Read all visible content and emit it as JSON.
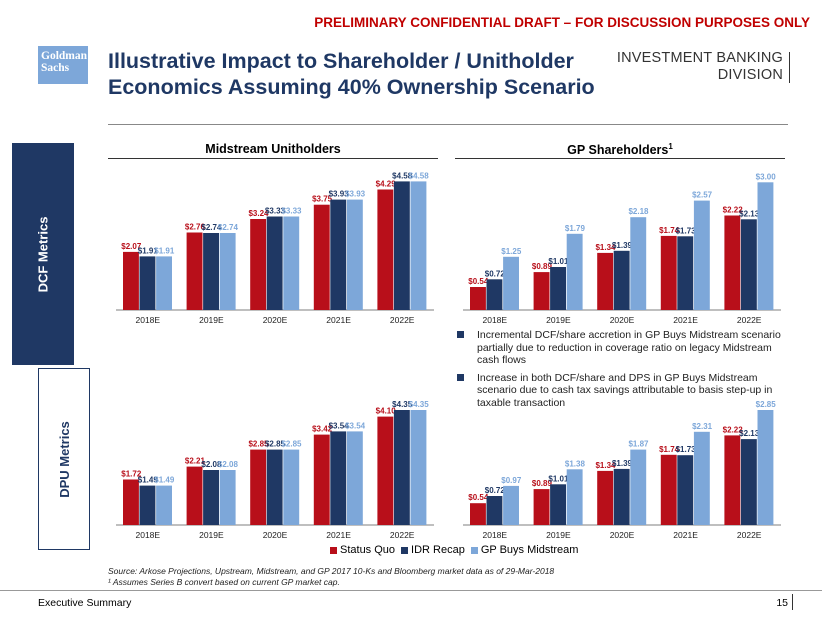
{
  "draft_banner": "PRELIMINARY CONFIDENTIAL DRAFT – FOR DISCUSSION PURPOSES ONLY",
  "logo": {
    "line1": "Goldman",
    "line2": "Sachs"
  },
  "title": {
    "line1": "Illustrative Impact to Shareholder / Unitholder",
    "line2": "Economics Assuming 40% Ownership Scenario"
  },
  "division": {
    "line1": "INVESTMENT BANKING",
    "line2": "DIVISION"
  },
  "sections": {
    "left": "Midstream Unitholders",
    "right": "GP Shareholders",
    "right_sup": "1"
  },
  "side_labels": {
    "dcf": "DCF Metrics",
    "dpu": "DPU Metrics"
  },
  "colors": {
    "status_quo": "#b80f1a",
    "idr_recap": "#1f3864",
    "gp_buys": "#7da7d9",
    "navy": "#1f3864"
  },
  "legend": [
    "Status Quo",
    "IDR Recap",
    "GP Buys Midstream"
  ],
  "bullets": [
    "Incremental DCF/share accretion in GP Buys Midstream scenario partially due to reduction in coverage ratio on legacy Midstream cash flows",
    "Increase in both DCF/share and DPS in GP Buys Midstream scenario due to cash tax savings attributable to basis step-up in taxable transaction"
  ],
  "chart_data": [
    {
      "id": "mid_dcf",
      "type": "bar",
      "title": "Midstream Unitholders – DCF Metrics",
      "categories": [
        "2018E",
        "2019E",
        "2020E",
        "2021E",
        "2022E"
      ],
      "ylim": [
        0,
        4.7
      ],
      "series": [
        {
          "name": "Status Quo",
          "values": [
            2.07,
            2.76,
            3.24,
            3.75,
            4.29
          ],
          "labels": [
            "$2.07",
            "$2.76",
            "$3.24",
            "$3.75",
            "$4.29"
          ]
        },
        {
          "name": "IDR Recap",
          "values": [
            1.91,
            2.74,
            3.33,
            3.93,
            4.58
          ],
          "labels": [
            "$1.91",
            "$2.74",
            "$3.33",
            "$3.93",
            "$4.58"
          ]
        },
        {
          "name": "GP Buys Midstream",
          "values": [
            1.91,
            2.74,
            3.33,
            3.93,
            4.58
          ],
          "labels": [
            "$1.91",
            "$2.74",
            "$3.33",
            "$3.93",
            "$4.58"
          ]
        }
      ]
    },
    {
      "id": "gp_dcf",
      "type": "bar",
      "title": "GP Shareholders – DCF Metrics",
      "categories": [
        "2018E",
        "2019E",
        "2020E",
        "2021E",
        "2022E"
      ],
      "ylim": [
        0,
        3.1
      ],
      "series": [
        {
          "name": "Status Quo",
          "values": [
            0.54,
            0.89,
            1.34,
            1.74,
            2.22
          ],
          "labels": [
            "$0.54",
            "$0.89",
            "$1.34",
            "$1.74",
            "$2.22"
          ]
        },
        {
          "name": "IDR Recap",
          "values": [
            0.72,
            1.01,
            1.39,
            1.73,
            2.13
          ],
          "labels": [
            "$0.72",
            "$1.01",
            "$1.39",
            "$1.73",
            "$2.13"
          ]
        },
        {
          "name": "GP Buys Midstream",
          "values": [
            1.25,
            1.79,
            2.18,
            2.57,
            3.0
          ],
          "labels": [
            "$1.25",
            "$1.79",
            "$2.18",
            "$2.57",
            "$3.00"
          ]
        }
      ]
    },
    {
      "id": "mid_dpu",
      "type": "bar",
      "title": "Midstream Unitholders – DPU Metrics",
      "categories": [
        "2018E",
        "2019E",
        "2020E",
        "2021E",
        "2022E"
      ],
      "ylim": [
        0,
        4.5
      ],
      "series": [
        {
          "name": "Status Quo",
          "values": [
            1.72,
            2.21,
            2.85,
            3.42,
            4.1
          ],
          "labels": [
            "$1.72",
            "$2.21",
            "$2.85",
            "$3.42",
            "$4.10"
          ]
        },
        {
          "name": "IDR Recap",
          "values": [
            1.49,
            2.08,
            2.85,
            3.54,
            4.35
          ],
          "labels": [
            "$1.49",
            "$2.08",
            "$2.85",
            "$3.54",
            "$4.35"
          ]
        },
        {
          "name": "GP Buys Midstream",
          "values": [
            1.49,
            2.08,
            2.85,
            3.54,
            4.35
          ],
          "labels": [
            "$1.49",
            "$2.08",
            "$2.85",
            "$3.54",
            "$4.35"
          ]
        }
      ]
    },
    {
      "id": "gp_dpu",
      "type": "bar",
      "title": "GP Shareholders – DPU Metrics",
      "categories": [
        "2018E",
        "2019E",
        "2020E",
        "2021E",
        "2022E"
      ],
      "ylim": [
        0,
        2.95
      ],
      "series": [
        {
          "name": "Status Quo",
          "values": [
            0.54,
            0.89,
            1.34,
            1.74,
            2.22
          ],
          "labels": [
            "$0.54",
            "$0.89",
            "$1.34",
            "$1.74",
            "$2.22"
          ]
        },
        {
          "name": "IDR Recap",
          "values": [
            0.72,
            1.01,
            1.39,
            1.73,
            2.13
          ],
          "labels": [
            "$0.72",
            "$1.01",
            "$1.39",
            "$1.73",
            "$2.13"
          ]
        },
        {
          "name": "GP Buys Midstream",
          "values": [
            0.97,
            1.38,
            1.87,
            2.31,
            2.85
          ],
          "labels": [
            "$0.97",
            "$1.38",
            "$1.87",
            "$2.31",
            "$2.85"
          ]
        }
      ]
    }
  ],
  "source": "Source: Arkose Projections, Upstream, Midstream, and GP 2017 10-Ks and Bloomberg market data as of 29-Mar-2018",
  "footnote": "¹ Assumes Series B convert based on current GP market cap.",
  "footer": {
    "left": "Executive Summary",
    "page": "15"
  }
}
